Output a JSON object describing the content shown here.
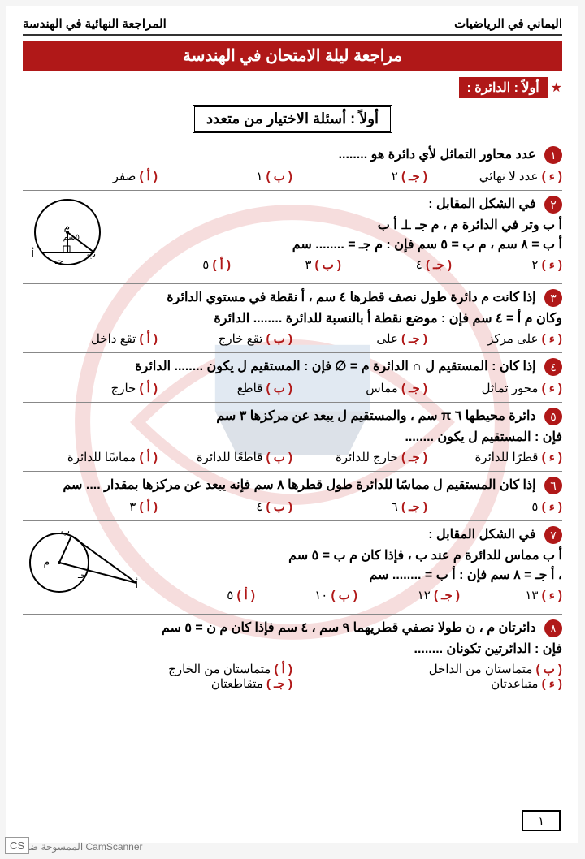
{
  "header": {
    "right": "اليماني في الرياضيات",
    "left": "المراجعة النهائية في الهندسة"
  },
  "banner": "مراجعة ليلة الامتحان في الهندسة",
  "section": "أولاً : الدائرة :",
  "qheader": "أولاً : أسئلة الاختيار من متعدد",
  "letters": [
    "أ",
    "ب",
    "جـ",
    "ء"
  ],
  "brand": "#b01818",
  "questions": [
    {
      "n": "١",
      "text": "عدد محاور التماثل لأي دائرة هو ........",
      "opts": [
        "صفر",
        "١",
        "٢",
        "عدد لا نهائي"
      ],
      "cols": 4
    },
    {
      "n": "٢",
      "text": "في الشكل المقابل :",
      "lines": [
        "أ ب وتر في الدائرة م ، م جـ ⊥ أ ب",
        "أ ب = ٨ سم ، م ب = ٥ سم  فإن : م جـ = ........ سم"
      ],
      "opts": [
        "٥",
        "٣",
        "٤",
        "٢"
      ],
      "cols": 4,
      "diagram": "d1"
    },
    {
      "n": "٣",
      "text": "إذا كانت م دائرة طول نصف قطرها ٤ سم ، أ نقطة في مستوي الدائرة",
      "lines": [
        "وكان م أ = ٤ سم   فإن : موضع نقطة أ بالنسبة للدائرة ........ الدائرة"
      ],
      "opts": [
        "تقع داخل",
        "تقع خارج",
        "على",
        "على مركز"
      ],
      "cols": 4
    },
    {
      "n": "٤",
      "text": "إذا كان : المستقيم ل ∩ الدائرة م = ∅   فإن : المستقيم ل يكون ........ الدائرة",
      "opts": [
        "خارج",
        "قاطع",
        "مماس",
        "محور تماثل"
      ],
      "cols": 4
    },
    {
      "n": "٥",
      "text": "دائرة محيطها ٦ π سم ، والمستقيم ل يبعد عن مركزها ٣ سم",
      "lines": [
        "فإن : المستقيم ل يكون ........"
      ],
      "opts": [
        "مماسًا للدائرة",
        "قاطعًا للدائرة",
        "خارج للدائرة",
        "قطرًا للدائرة"
      ],
      "cols": 4
    },
    {
      "n": "٦",
      "text": "إذا كان المستقيم ل مماسًا للدائرة طول قطرها ٨ سم فإنه يبعد عن مركزها بمقدار .... سم",
      "opts": [
        "٣",
        "٤",
        "٦",
        "٥"
      ],
      "cols": 4
    },
    {
      "n": "٧",
      "text": "في الشكل المقابل :",
      "lines": [
        "أ ب مماس للدائرة م عند ب ، فإذا كان م ب = ٥ سم",
        "، أ جـ = ٨ سم   فإن : أ ب = ........ سم"
      ],
      "opts": [
        "٥",
        "١٠",
        "١٢",
        "١٣"
      ],
      "cols": 4,
      "diagram": "d2"
    },
    {
      "n": "٨",
      "text": "دائرتان م ، ن طولا نصفي قطريهما ٩ سم ، ٤ سم فإذا كان م ن = ٥ سم",
      "lines": [
        "فإن : الدائرتين تكونان ........"
      ],
      "opts": [
        "متماستان من الخارج",
        "متماستان من الداخل",
        "متقاطعتان",
        "متباعدتان"
      ],
      "cols": 2
    }
  ],
  "pagenum": "١",
  "scanfoot": "الممسوحة ضوئيا بـ CamScanner",
  "cs": "CS"
}
